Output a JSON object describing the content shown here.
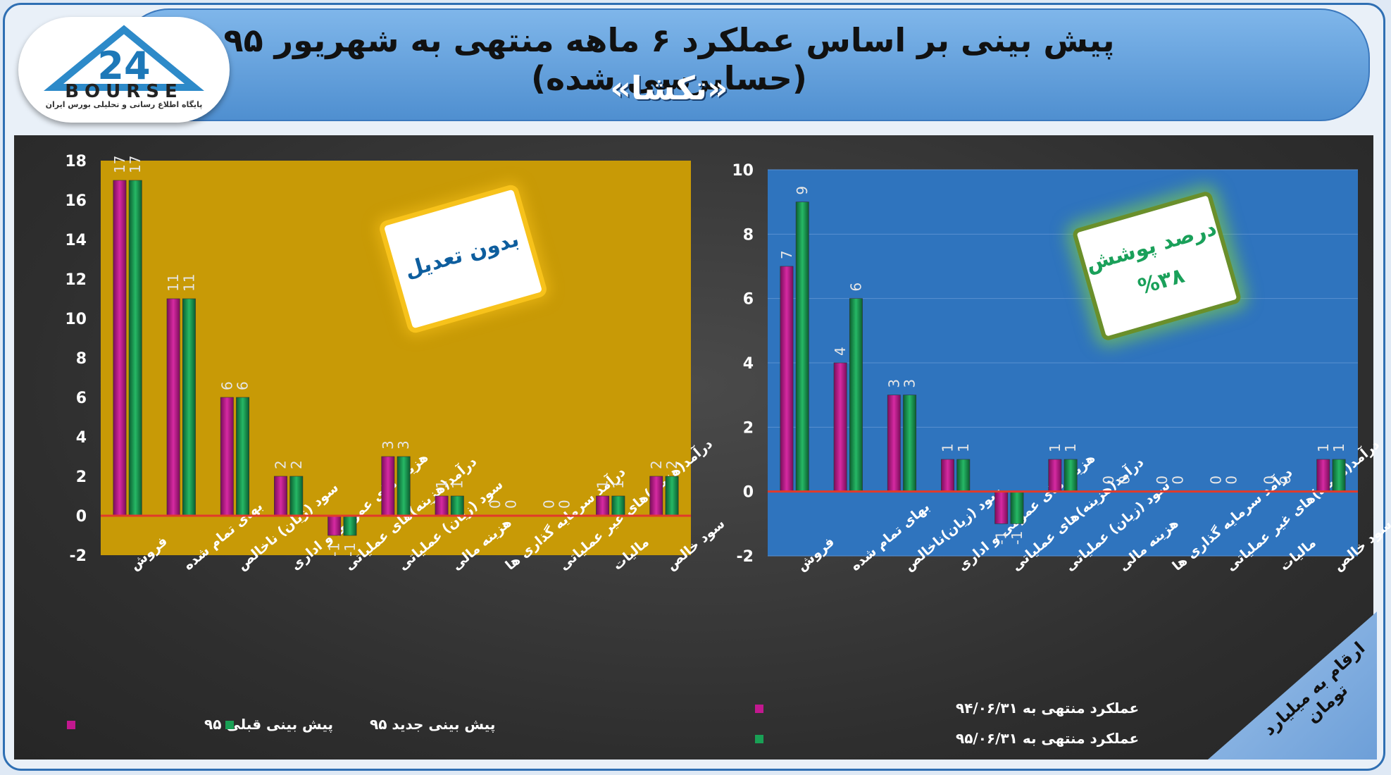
{
  "header": {
    "title": "پیش بینی بر اساس عملکرد ۶ ماهه منتهی به شهریور ۹۵ (حسابرسی شده)",
    "company": "«تکشا»",
    "logo_text": "BOURSE",
    "logo_number": "24",
    "logo_subtitle": "پایگاه اطلاع رسانی و تحلیلی بورس ایران"
  },
  "notes": {
    "left": "بدون تعدیل",
    "right_label": "درصد پوشش",
    "right_value": "%۳۸"
  },
  "units_note": "ارقام به میلیارد تومان",
  "colors": {
    "series_magenta": "#c2188f",
    "series_green": "#19a055",
    "left_bg": "#c89a06",
    "right_bg": "#2f74be",
    "zero_line": "#e23a2a"
  },
  "chart_data": [
    {
      "type": "bar",
      "categories": [
        "فروش",
        "بهای تمام شده",
        "سود (زیان) ناخالص",
        "هزینه های عمومی و اداری",
        "درآمد(هزینه)های عملیاتی",
        "سود (زیان) عملیاتی",
        "هزینه مالی",
        "درآمد سرمایه گذاری ها",
        "درآمد(هزینه)های غیر عملیاتی",
        "مالیات",
        "سود خالص"
      ],
      "series": [
        {
          "name": "پیش بینی قبلی ۹۵",
          "values": [
            17,
            11,
            6,
            2,
            -1,
            3,
            1,
            0,
            0,
            1,
            2
          ]
        },
        {
          "name": "پیش بینی جدید ۹۵",
          "values": [
            17,
            11,
            6,
            2,
            -1,
            3,
            1,
            0,
            0,
            1,
            2
          ]
        }
      ],
      "ylim": [
        -2,
        18
      ],
      "yticks": [
        -2,
        0,
        2,
        4,
        6,
        8,
        10,
        12,
        14,
        16,
        18
      ],
      "legend": "bottom"
    },
    {
      "type": "bar",
      "categories": [
        "فروش",
        "بهای تمام شده",
        "سود (زیان)ناخالص",
        "هزینه های عمومی و اداری",
        "درآمد(هزینه)های عملیاتی",
        "سود (زیان) عملیاتی",
        "هزینه مالی",
        "درآمد سرمایه گذاری ها",
        "درآمد(هزینه)های غیر عملیاتی",
        "مالیات",
        "سود خالص"
      ],
      "series": [
        {
          "name": "عملکرد منتهی به ۹۴/۰۶/۳۱",
          "values": [
            7,
            4,
            3,
            1,
            -1,
            1,
            0,
            0,
            0,
            0,
            1
          ]
        },
        {
          "name": "عملکرد منتهی به ۹۵/۰۶/۳۱",
          "values": [
            9,
            6,
            3,
            1,
            -1,
            1,
            0,
            0,
            0,
            0,
            1
          ]
        }
      ],
      "ylim": [
        -2,
        10
      ],
      "yticks": [
        -2,
        0,
        2,
        4,
        6,
        8,
        10
      ],
      "legend": "bottom-left"
    }
  ]
}
